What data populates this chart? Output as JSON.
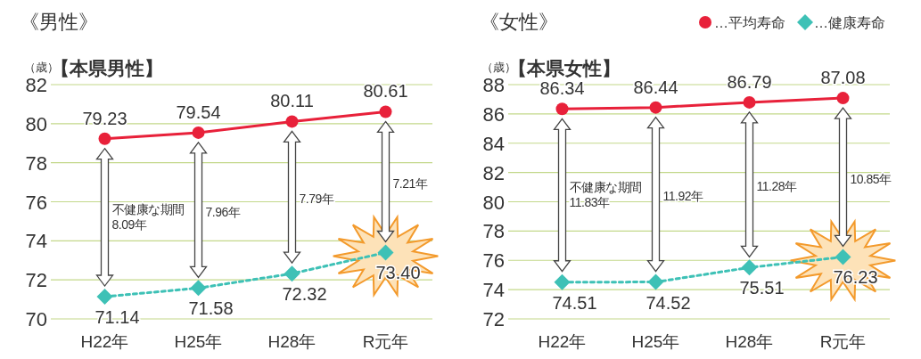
{
  "chart_data": [
    {
      "type": "line",
      "title": "《男性》",
      "subtitle": "【本県男性】",
      "ylabel": "（歳）",
      "categories": [
        "H22年",
        "H25年",
        "H28年",
        "R元年"
      ],
      "series": [
        {
          "color": "#e8213a",
          "values": [
            79.23,
            79.54,
            80.11,
            80.61
          ],
          "value_labels": [
            "79.23",
            "79.54",
            "80.11",
            "80.61"
          ],
          "marker": "circle",
          "line_style": "solid"
        },
        {
          "color": "#3ec1b6",
          "values": [
            71.14,
            71.58,
            72.32,
            73.4
          ],
          "value_labels": [
            "71.14",
            "71.58",
            "72.32",
            "73.40"
          ],
          "marker": "diamond",
          "line_style": "dotted"
        }
      ],
      "ylim": [
        70,
        82
      ],
      "yticks": [
        70,
        72,
        74,
        76,
        78,
        80,
        82
      ],
      "grid": "y",
      "legend": false,
      "annotations": [
        "不健康な期間\n8.09年",
        "7.96年",
        "7.79年",
        "7.21年"
      ]
    },
    {
      "type": "line",
      "title": "《女性》",
      "subtitle": "【本県女性】",
      "ylabel": "（歳）",
      "categories": [
        "H22年",
        "H25年",
        "H28年",
        "R元年"
      ],
      "series": [
        {
          "name": "…平均寿命",
          "color": "#e8213a",
          "values": [
            86.34,
            86.44,
            86.79,
            87.08
          ],
          "value_labels": [
            "86.34",
            "86.44",
            "86.79",
            "87.08"
          ],
          "marker": "circle",
          "line_style": "solid"
        },
        {
          "name": "…健康寿命",
          "color": "#3ec1b6",
          "values": [
            74.51,
            74.52,
            75.51,
            76.23
          ],
          "value_labels": [
            "74.51",
            "74.52",
            "75.51",
            "76.23"
          ],
          "marker": "diamond",
          "line_style": "dotted"
        }
      ],
      "ylim": [
        72,
        88
      ],
      "yticks": [
        72,
        74,
        76,
        78,
        80,
        82,
        84,
        86,
        88
      ],
      "grid": "y",
      "legend": "top right",
      "annotations": [
        "不健康な期間\n11.83年",
        "11.92年",
        "11.28年",
        "10.85年"
      ]
    }
  ]
}
